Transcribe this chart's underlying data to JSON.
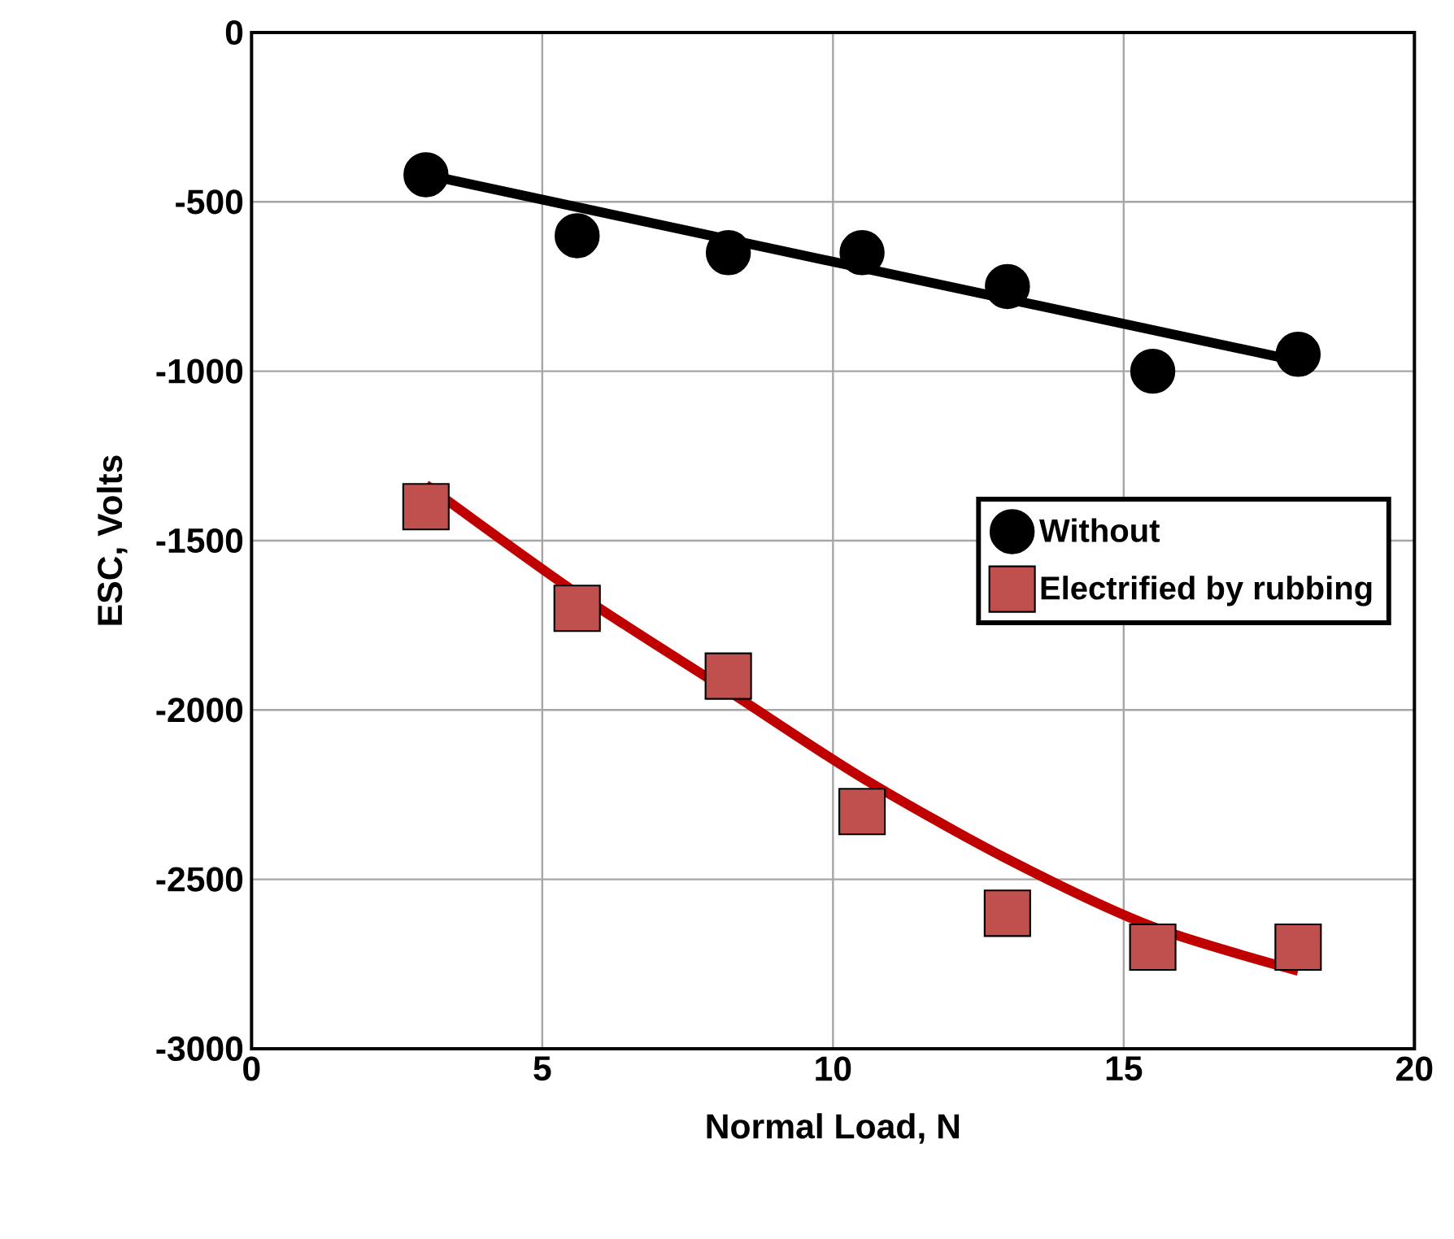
{
  "chart_data": {
    "type": "scatter",
    "xlabel": "Normal Load, N",
    "ylabel": "ESC, Volts",
    "xlim": [
      0,
      20
    ],
    "xticks": [
      0,
      5,
      10,
      15,
      20
    ],
    "ylim": [
      -3000,
      0
    ],
    "yticks": [
      -3000,
      -2500,
      -2000,
      -1500,
      -1000,
      -500,
      0
    ],
    "grid": true,
    "legend": "right",
    "series": [
      {
        "type": "line",
        "color": "#000000",
        "x": [
          3,
          18
        ],
        "values": [
          -420,
          -970
        ],
        "marker": "none",
        "line_style": "solid"
      },
      {
        "type": "line",
        "color": "#c00000",
        "x": [
          3,
          5.6,
          8.2,
          10.5,
          13,
          15.5,
          18
        ],
        "values": [
          -1335,
          -1656,
          -1944,
          -2200,
          -2440,
          -2640,
          -2770
        ],
        "marker": "none",
        "line_style": "solid"
      },
      {
        "name": "Without",
        "color": "#000000",
        "marker": "circle",
        "x": [
          3,
          5.6,
          8.2,
          10.5,
          13,
          15.5,
          18
        ],
        "values": [
          -420,
          -600,
          -650,
          -650,
          -750,
          -1000,
          -950
        ]
      },
      {
        "name": "Electrified by rubbing",
        "color": "#c0504d",
        "marker": "square",
        "x": [
          3,
          5.6,
          8.2,
          10.5,
          13,
          15.5,
          18
        ],
        "values": [
          -1400,
          -1700,
          -1900,
          -2300,
          -2600,
          -2700,
          -2700
        ]
      }
    ]
  }
}
